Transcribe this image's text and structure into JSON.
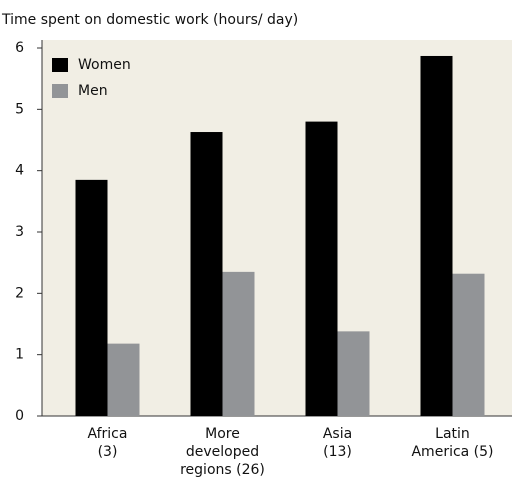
{
  "chart_data": {
    "type": "bar",
    "title": "Time spent on domestic work (hours/ day)",
    "categories": [
      "Africa\n(3)",
      "More\ndeveloped\nregions (26)",
      "Asia\n(13)",
      "Latin\nAmerica (5)"
    ],
    "series": [
      {
        "name": "Women",
        "color": "#000000",
        "values": [
          3.85,
          4.63,
          4.8,
          5.87
        ]
      },
      {
        "name": "Men",
        "color": "#929497",
        "values": [
          1.18,
          2.35,
          1.38,
          2.32
        ]
      }
    ],
    "ylim": [
      0,
      6
    ],
    "yticks": [
      0,
      1,
      2,
      3,
      4,
      5,
      6
    ],
    "grid": false,
    "legend": "upper left"
  }
}
